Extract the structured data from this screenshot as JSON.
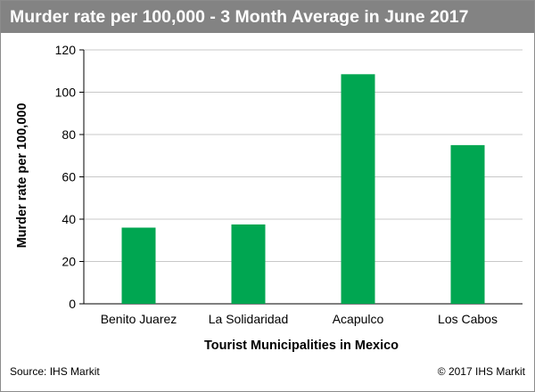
{
  "chart_data": {
    "type": "bar",
    "title": "Murder rate per 100,000 - 3 Month Average in June 2017",
    "xlabel": "Tourist Municipalities in Mexico",
    "ylabel": "Murder rate per 100,000",
    "categories": [
      "Benito Juarez",
      "La Solidaridad",
      "Acapulco",
      "Los Cabos"
    ],
    "values": [
      36,
      37.5,
      108.5,
      75
    ],
    "ylim": [
      0,
      120
    ],
    "yticks": [
      "0",
      "20",
      "40",
      "60",
      "80",
      "100",
      "120"
    ],
    "grid": true,
    "legend": "none",
    "bar_color": "#00a651"
  },
  "footer": {
    "source": "Source: IHS Markit",
    "copyright": "© 2017 IHS Markit"
  }
}
